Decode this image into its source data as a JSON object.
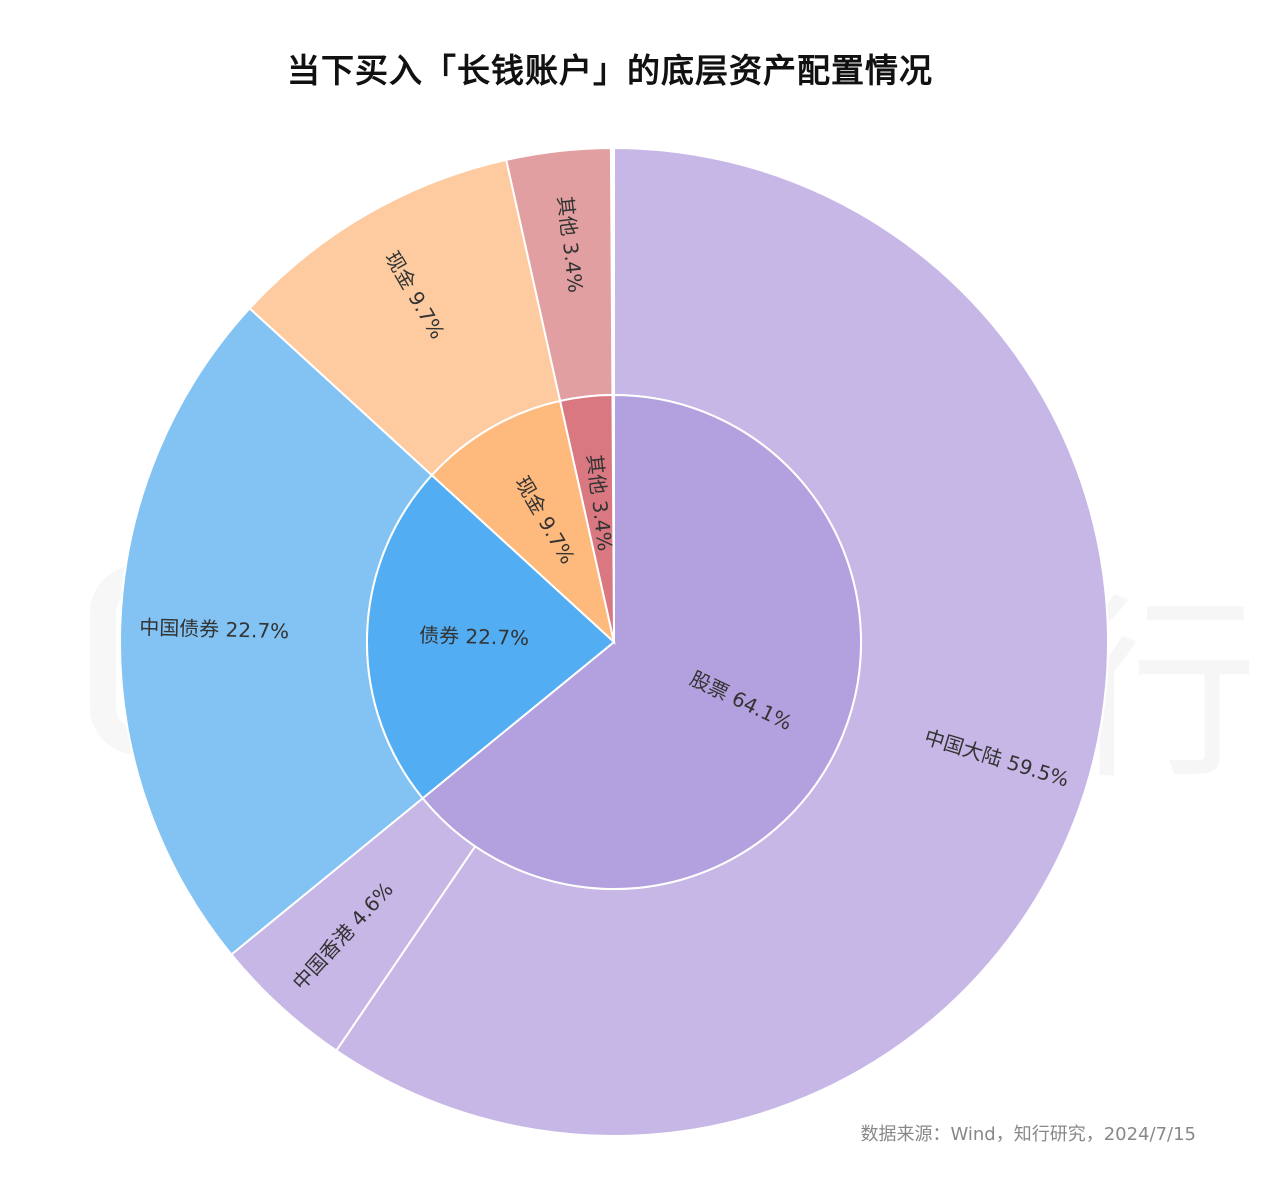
{
  "title": "当下买入「长钱账户」的底层资产配置情况",
  "source": "数据来源：Wind，知行研究，2024/7/15",
  "watermark": "有知有行",
  "chart_data": {
    "type": "sunburst",
    "title": "当下买入「长钱账户」的底层资产配置情况",
    "inner": [
      {
        "name": "股票",
        "value": 64.1,
        "label": "股票 64.1%",
        "color": "#b3a0de"
      },
      {
        "name": "债券",
        "value": 22.7,
        "label": "债券 22.7%",
        "color": "#52adf2"
      },
      {
        "name": "现金",
        "value": 9.7,
        "label": "现金 9.7%",
        "color": "#feb97c"
      },
      {
        "name": "其他",
        "value": 3.4,
        "label": "其他 3.4%",
        "color": "#d97880"
      }
    ],
    "outer": [
      {
        "name": "中国大陆",
        "value": 59.5,
        "label": "中国大陆 59.5%",
        "parent": "股票",
        "color": "#c7b7e6"
      },
      {
        "name": "中国香港",
        "value": 4.6,
        "label": "中国香港 4.6%",
        "parent": "股票",
        "color": "#c7b7e6"
      },
      {
        "name": "中国债券",
        "value": 22.7,
        "label": "中国债券 22.7%",
        "parent": "债券",
        "color": "#82c3f4"
      },
      {
        "name": "现金",
        "value": 9.7,
        "label": "现金 9.7%",
        "parent": "现金",
        "color": "#fecba0"
      },
      {
        "name": "其他",
        "value": 3.4,
        "label": "其他 3.4%",
        "parent": "其他",
        "color": "#e29fa1"
      }
    ]
  }
}
